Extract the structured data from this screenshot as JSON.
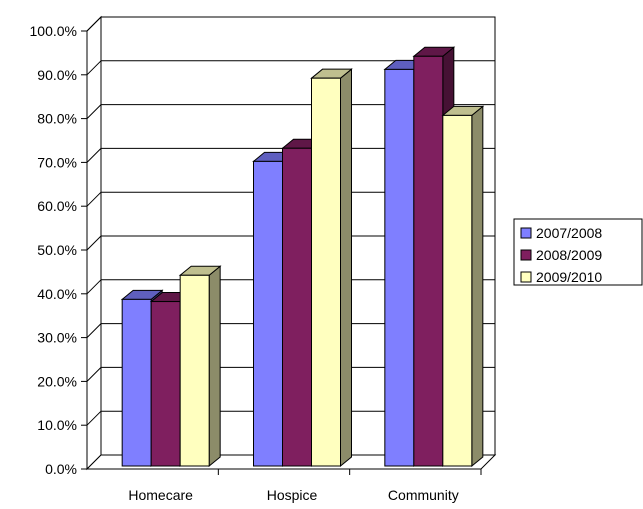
{
  "chart_data": {
    "type": "bar",
    "categories": [
      "Homecare",
      "Hospice",
      "Community"
    ],
    "series": [
      {
        "name": "2007/2008",
        "values": [
          38.5,
          70.0,
          91.0
        ],
        "color": "#7f7fff"
      },
      {
        "name": "2008/2009",
        "values": [
          38.0,
          73.0,
          94.0
        ],
        "color": "#7f1f5f"
      },
      {
        "name": "2009/2010",
        "values": [
          44.0,
          89.0,
          80.5
        ],
        "color": "#ffffbf"
      }
    ],
    "y_ticks": [
      "0.0%",
      "10.0%",
      "20.0%",
      "30.0%",
      "40.0%",
      "50.0%",
      "60.0%",
      "70.0%",
      "80.0%",
      "90.0%",
      "100.0%"
    ],
    "ylim": [
      0,
      100
    ],
    "grid": true,
    "style": "3d-clustered-column",
    "legend_position": "right"
  }
}
